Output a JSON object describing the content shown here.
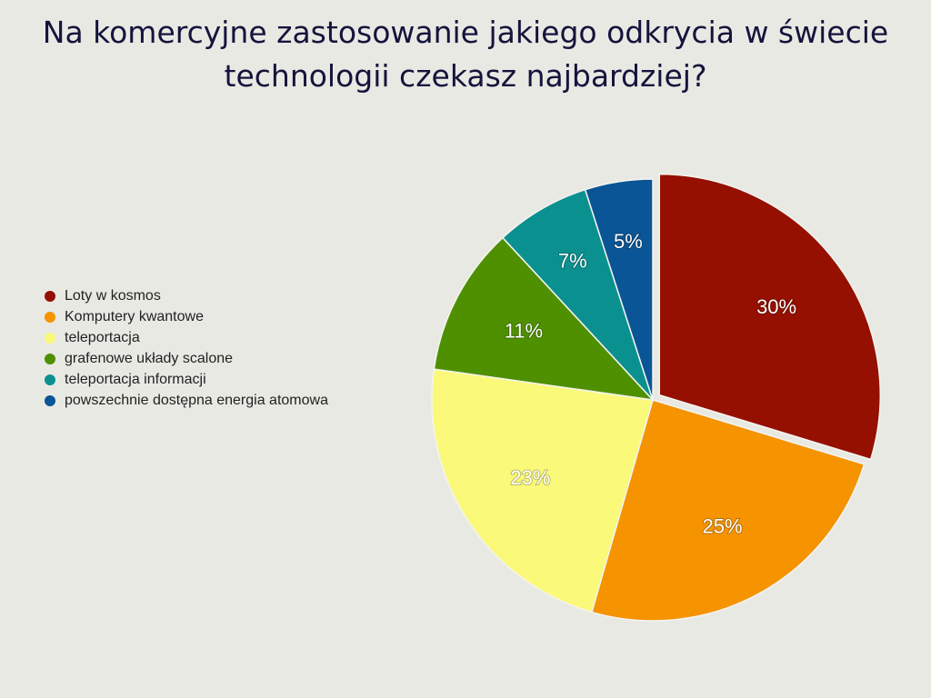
{
  "chart_data": {
    "type": "pie",
    "title": "Na komercyjne zastosowanie jakiego odkrycia w świecie technologii czekasz najbardziej?",
    "categories": [
      "Loty w kosmos",
      "Komputery kwantowe",
      "teleportacja",
      "grafenowe układy scalone",
      "teleportacja informacji",
      "powszechnie dostępna energia atomowa"
    ],
    "values": [
      30,
      25,
      23,
      11,
      7,
      5
    ],
    "value_labels": [
      "30%",
      "25%",
      "23%",
      "11%",
      "7%",
      "5%"
    ],
    "colors": [
      "#951000",
      "#f59300",
      "#fbf97a",
      "#4f9000",
      "#0b9090",
      "#0a5595"
    ],
    "legend": "left"
  }
}
